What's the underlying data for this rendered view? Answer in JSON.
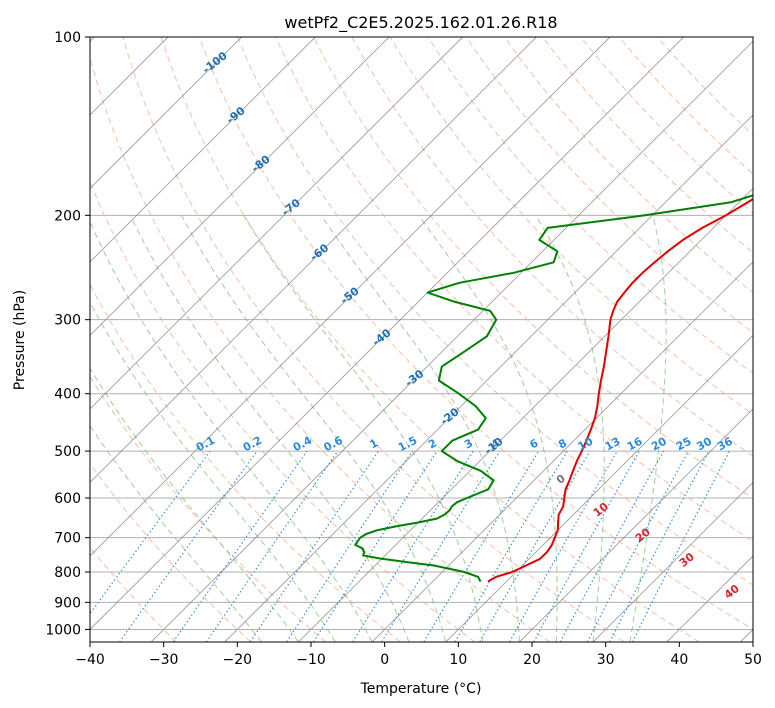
{
  "chart_data": {
    "type": "line",
    "title": "wetPf2_C2E5.2025.162.01.26.R18",
    "xlabel": "Temperature (°C)",
    "ylabel": "Pressure (hPa)",
    "xlim": [
      -40,
      50
    ],
    "ylim": [
      1050,
      100
    ],
    "y_scale": "log",
    "grid": true,
    "x_ticks": [
      -40,
      -30,
      -20,
      -10,
      0,
      10,
      20,
      30,
      40,
      50
    ],
    "y_ticks": [
      100,
      200,
      300,
      400,
      500,
      600,
      700,
      800,
      900,
      1000
    ],
    "series": [
      {
        "color": "#e00000",
        "pressure": [
          830,
          815,
          800,
          780,
          760,
          740,
          720,
          700,
          680,
          660,
          640,
          620,
          600,
          580,
          560,
          540,
          520,
          500,
          480,
          460,
          440,
          420,
          400,
          380,
          360,
          340,
          320,
          300,
          290,
          280,
          270,
          260,
          250,
          240,
          230,
          220,
          210,
          200,
          190,
          180,
          170,
          160,
          150,
          140,
          130,
          120,
          110,
          100
        ],
        "temperature": [
          7.5,
          8,
          9.5,
          10.5,
          11.5,
          11.5,
          11.2,
          10.6,
          10,
          9,
          8,
          7.5,
          6.5,
          5.5,
          4.8,
          4,
          3.2,
          2.5,
          1.7,
          0.8,
          -0.2,
          -1.5,
          -3,
          -4.5,
          -6,
          -7.7,
          -9.5,
          -11.5,
          -12.3,
          -13,
          -13.3,
          -13.5,
          -13.5,
          -13.3,
          -13,
          -12.5,
          -11.5,
          -10,
          -8.8,
          -7.6,
          -6.5,
          -5.8,
          -5.5,
          -6,
          -5.8,
          -5.7,
          -6.5,
          -7.2
        ]
      },
      {
        "color": "#008000",
        "pressure": [
          830,
          815,
          800,
          780,
          770,
          760,
          750,
          740,
          730,
          720,
          700,
          690,
          680,
          670,
          660,
          650,
          640,
          630,
          620,
          610,
          600,
          580,
          560,
          540,
          520,
          500,
          480,
          460,
          440,
          420,
          400,
          380,
          360,
          340,
          320,
          300,
          290,
          280,
          270,
          260,
          250,
          240,
          230,
          220,
          210,
          200,
          190,
          180,
          170,
          160,
          150,
          140,
          130,
          120,
          110,
          100
        ],
        "temperature": [
          6.5,
          5.5,
          3,
          -2,
          -6,
          -10,
          -13,
          -13.3,
          -14,
          -15.5,
          -15.8,
          -15.5,
          -14.5,
          -12.5,
          -10,
          -8,
          -7.5,
          -7.4,
          -7.6,
          -7.5,
          -6.7,
          -5,
          -5.5,
          -8.5,
          -13,
          -16.5,
          -16.5,
          -14.5,
          -15,
          -18,
          -22,
          -26.5,
          -28,
          -27,
          -26,
          -27,
          -29,
          -35,
          -40,
          -37,
          -31,
          -27,
          -28,
          -32,
          -32.5,
          -21,
          -11,
          -7,
          -6,
          -6.6,
          -6.7,
          -4.6,
          -2.4,
          -3,
          -3.8,
          -3.4
        ]
      }
    ],
    "mixing_ratio_labels": [
      "0.1",
      "0.2",
      "0.4",
      "0.6",
      "1",
      "1.5",
      "2",
      "3",
      "4",
      "6",
      "8",
      "10",
      "13",
      "16",
      "20",
      "25",
      "30",
      "36"
    ],
    "isotherm_labels": [
      "-100",
      "-90",
      "-80",
      "-70",
      "-60",
      "-50",
      "-40",
      "-30",
      "-20",
      "-10"
    ],
    "moist_adiabat_labels": [
      "0",
      "10",
      "20",
      "30",
      "40"
    ],
    "colors": {
      "temperature": "#e00000",
      "dewpoint": "#008000",
      "dry_adiabat": "#f4a582",
      "moist_adiabat": "#7fbf7b",
      "mixing_ratio": "#2b8ae0",
      "isotherm": "#808080",
      "isotherm_label": "#1f6fb5",
      "moist_label": "#d62728"
    }
  }
}
